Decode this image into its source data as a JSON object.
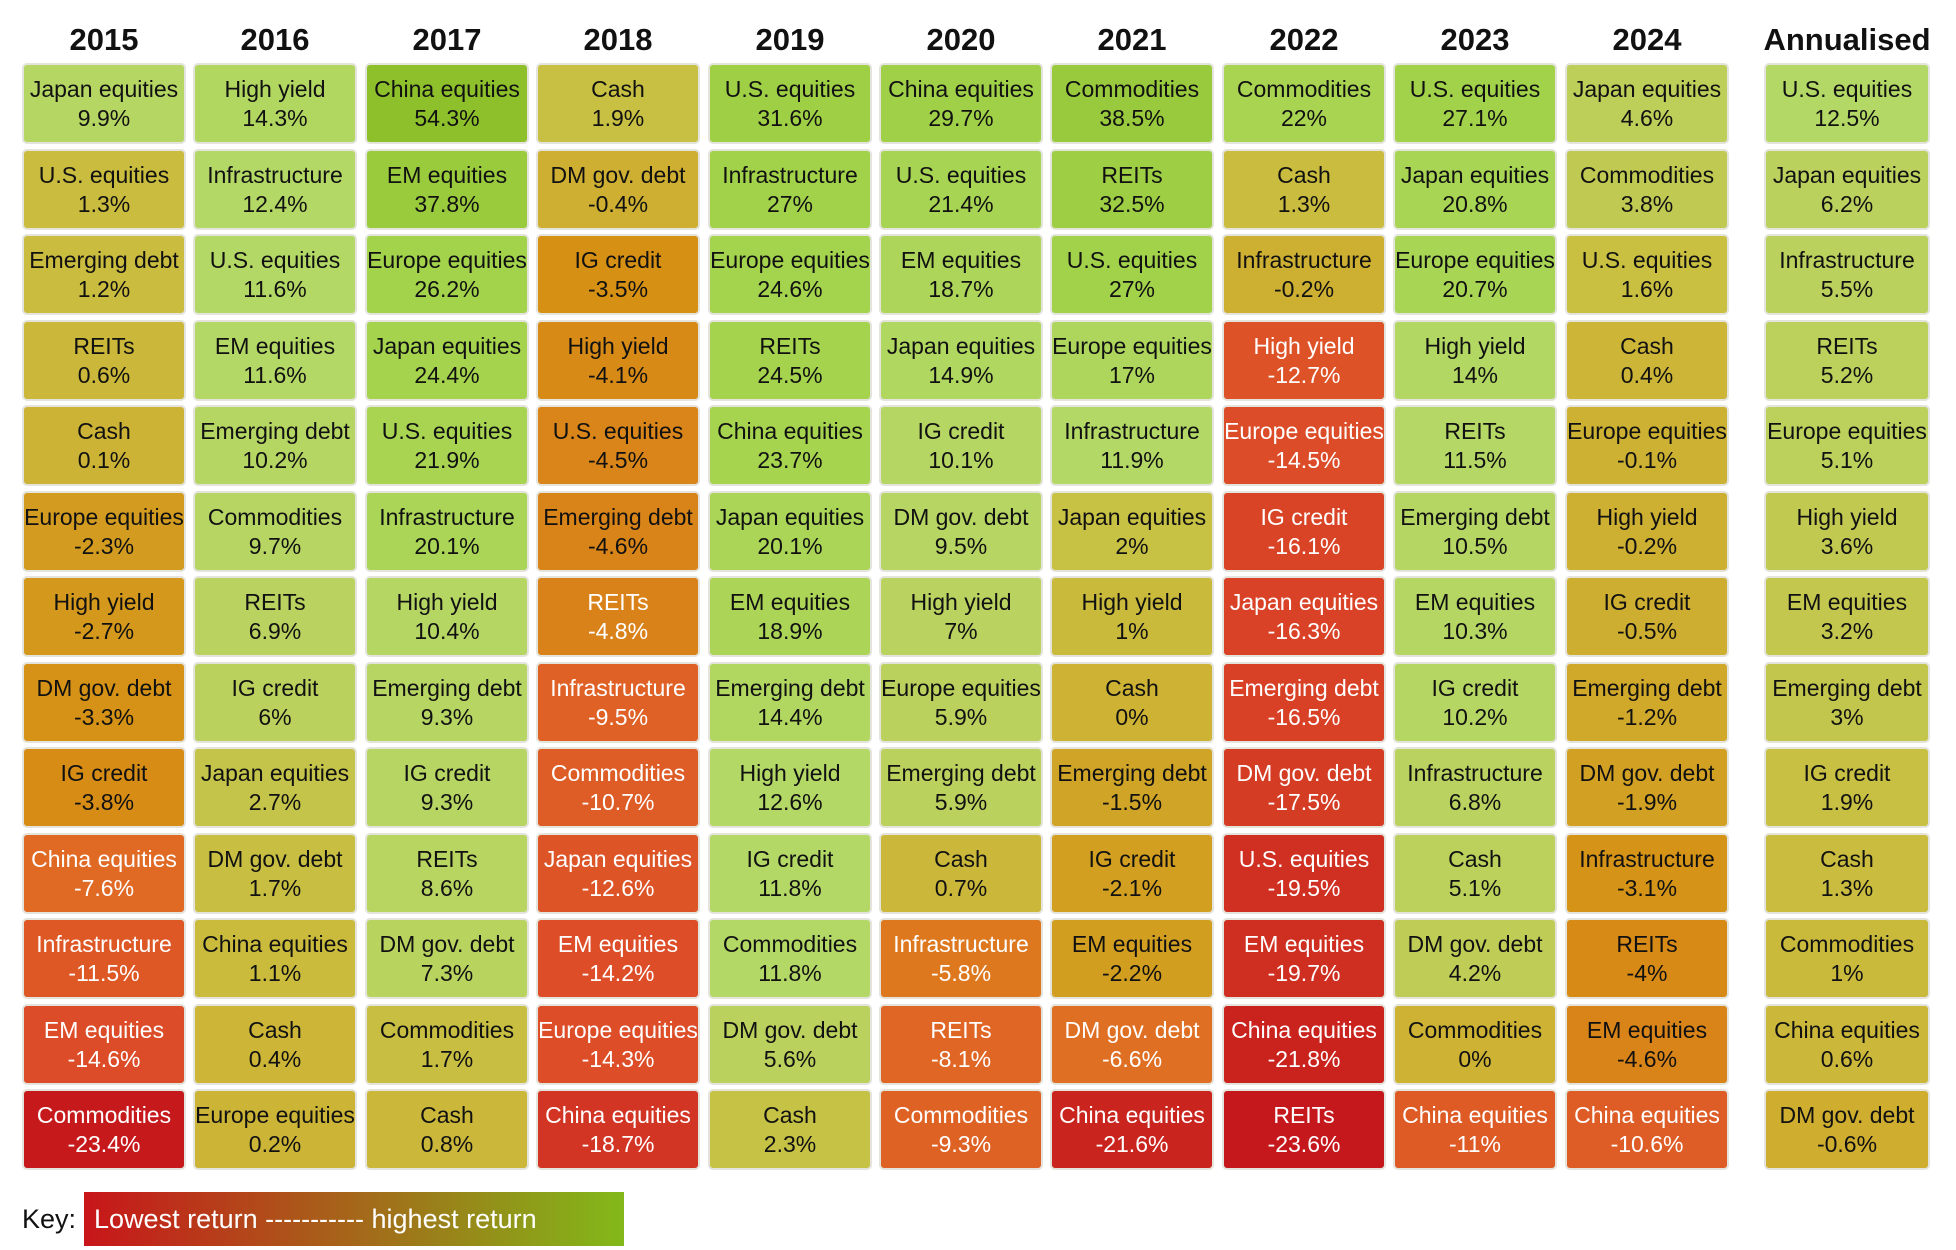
{
  "chart_data": {
    "type": "table",
    "title": "",
    "years": [
      "2015",
      "2016",
      "2017",
      "2018",
      "2019",
      "2020",
      "2021",
      "2022",
      "2023",
      "2024",
      "Annualised"
    ],
    "columns": [
      {
        "year": "2015",
        "cells": [
          {
            "asset": "Japan equities",
            "value": 9.9,
            "label": "9.9%"
          },
          {
            "asset": "U.S. equities",
            "value": 1.3,
            "label": "1.3%"
          },
          {
            "asset": "Emerging debt",
            "value": 1.2,
            "label": "1.2%"
          },
          {
            "asset": "REITs",
            "value": 0.6,
            "label": "0.6%"
          },
          {
            "asset": "Cash",
            "value": 0.1,
            "label": "0.1%"
          },
          {
            "asset": "Europe equities",
            "value": -2.3,
            "label": "-2.3%"
          },
          {
            "asset": "High yield",
            "value": -2.7,
            "label": "-2.7%"
          },
          {
            "asset": "DM gov. debt",
            "value": -3.3,
            "label": "-3.3%"
          },
          {
            "asset": "IG credit",
            "value": -3.8,
            "label": "-3.8%"
          },
          {
            "asset": "China equities",
            "value": -7.6,
            "label": "-7.6%"
          },
          {
            "asset": "Infrastructure",
            "value": -11.5,
            "label": "-11.5%"
          },
          {
            "asset": "EM equities",
            "value": -14.6,
            "label": "-14.6%"
          },
          {
            "asset": "Commodities",
            "value": -23.4,
            "label": "-23.4%"
          }
        ]
      },
      {
        "year": "2016",
        "cells": [
          {
            "asset": "High yield",
            "value": 14.3,
            "label": "14.3%"
          },
          {
            "asset": "Infrastructure",
            "value": 12.4,
            "label": "12.4%"
          },
          {
            "asset": "U.S. equities",
            "value": 11.6,
            "label": "11.6%"
          },
          {
            "asset": "EM equities",
            "value": 11.6,
            "label": "11.6%"
          },
          {
            "asset": "Emerging debt",
            "value": 10.2,
            "label": "10.2%"
          },
          {
            "asset": "Commodities",
            "value": 9.7,
            "label": "9.7%"
          },
          {
            "asset": "REITs",
            "value": 6.9,
            "label": "6.9%"
          },
          {
            "asset": "IG credit",
            "value": 6,
            "label": "6%"
          },
          {
            "asset": "Japan equities",
            "value": 2.7,
            "label": "2.7%"
          },
          {
            "asset": "DM gov. debt",
            "value": 1.7,
            "label": "1.7%"
          },
          {
            "asset": "China equities",
            "value": 1.1,
            "label": "1.1%"
          },
          {
            "asset": "Cash",
            "value": 0.4,
            "label": "0.4%"
          },
          {
            "asset": "Europe equities",
            "value": 0.2,
            "label": "0.2%"
          }
        ]
      },
      {
        "year": "2017",
        "cells": [
          {
            "asset": "China equities",
            "value": 54.3,
            "label": "54.3%"
          },
          {
            "asset": "EM equities",
            "value": 37.8,
            "label": "37.8%"
          },
          {
            "asset": "Europe equities",
            "value": 26.2,
            "label": "26.2%"
          },
          {
            "asset": "Japan equities",
            "value": 24.4,
            "label": "24.4%"
          },
          {
            "asset": "U.S. equities",
            "value": 21.9,
            "label": "21.9%"
          },
          {
            "asset": "Infrastructure",
            "value": 20.1,
            "label": "20.1%"
          },
          {
            "asset": "High yield",
            "value": 10.4,
            "label": "10.4%"
          },
          {
            "asset": "Emerging debt",
            "value": 9.3,
            "label": "9.3%"
          },
          {
            "asset": "IG credit",
            "value": 9.3,
            "label": "9.3%"
          },
          {
            "asset": "REITs",
            "value": 8.6,
            "label": "8.6%"
          },
          {
            "asset": "DM gov. debt",
            "value": 7.3,
            "label": "7.3%"
          },
          {
            "asset": "Commodities",
            "value": 1.7,
            "label": "1.7%"
          },
          {
            "asset": "Cash",
            "value": 0.8,
            "label": "0.8%"
          }
        ]
      },
      {
        "year": "2018",
        "cells": [
          {
            "asset": "Cash",
            "value": 1.9,
            "label": "1.9%"
          },
          {
            "asset": "DM gov. debt",
            "value": -0.4,
            "label": "-0.4%"
          },
          {
            "asset": "IG credit",
            "value": -3.5,
            "label": "-3.5%"
          },
          {
            "asset": "High yield",
            "value": -4.1,
            "label": "-4.1%"
          },
          {
            "asset": "U.S. equities",
            "value": -4.5,
            "label": "-4.5%"
          },
          {
            "asset": "Emerging debt",
            "value": -4.6,
            "label": "-4.6%"
          },
          {
            "asset": "REITs",
            "value": -4.8,
            "label": "-4.8%"
          },
          {
            "asset": "Infrastructure",
            "value": -9.5,
            "label": "-9.5%"
          },
          {
            "asset": "Commodities",
            "value": -10.7,
            "label": "-10.7%"
          },
          {
            "asset": "Japan equities",
            "value": -12.6,
            "label": "-12.6%"
          },
          {
            "asset": "EM equities",
            "value": -14.2,
            "label": "-14.2%"
          },
          {
            "asset": "Europe equities",
            "value": -14.3,
            "label": "-14.3%"
          },
          {
            "asset": "China equities",
            "value": -18.7,
            "label": "-18.7%"
          }
        ]
      },
      {
        "year": "2019",
        "cells": [
          {
            "asset": "U.S. equities",
            "value": 31.6,
            "label": "31.6%"
          },
          {
            "asset": "Infrastructure",
            "value": 27,
            "label": "27%"
          },
          {
            "asset": "Europe equities",
            "value": 24.6,
            "label": "24.6%"
          },
          {
            "asset": "REITs",
            "value": 24.5,
            "label": "24.5%"
          },
          {
            "asset": "China equities",
            "value": 23.7,
            "label": "23.7%"
          },
          {
            "asset": "Japan equities",
            "value": 20.1,
            "label": "20.1%"
          },
          {
            "asset": "EM equities",
            "value": 18.9,
            "label": "18.9%"
          },
          {
            "asset": "Emerging debt",
            "value": 14.4,
            "label": "14.4%"
          },
          {
            "asset": "High yield",
            "value": 12.6,
            "label": "12.6%"
          },
          {
            "asset": "IG credit",
            "value": 11.8,
            "label": "11.8%"
          },
          {
            "asset": "Commodities",
            "value": 11.8,
            "label": "11.8%"
          },
          {
            "asset": "DM gov. debt",
            "value": 5.6,
            "label": "5.6%"
          },
          {
            "asset": "Cash",
            "value": 2.3,
            "label": "2.3%"
          }
        ]
      },
      {
        "year": "2020",
        "cells": [
          {
            "asset": "China equities",
            "value": 29.7,
            "label": "29.7%"
          },
          {
            "asset": "U.S. equities",
            "value": 21.4,
            "label": "21.4%"
          },
          {
            "asset": "EM equities",
            "value": 18.7,
            "label": "18.7%"
          },
          {
            "asset": "Japan equities",
            "value": 14.9,
            "label": "14.9%"
          },
          {
            "asset": "IG credit",
            "value": 10.1,
            "label": "10.1%"
          },
          {
            "asset": "DM gov. debt",
            "value": 9.5,
            "label": "9.5%"
          },
          {
            "asset": "High yield",
            "value": 7,
            "label": "7%"
          },
          {
            "asset": "Europe equities",
            "value": 5.9,
            "label": "5.9%"
          },
          {
            "asset": "Emerging debt",
            "value": 5.9,
            "label": "5.9%"
          },
          {
            "asset": "Cash",
            "value": 0.7,
            "label": "0.7%"
          },
          {
            "asset": "Infrastructure",
            "value": -5.8,
            "label": "-5.8%"
          },
          {
            "asset": "REITs",
            "value": -8.1,
            "label": "-8.1%"
          },
          {
            "asset": "Commodities",
            "value": -9.3,
            "label": "-9.3%"
          }
        ]
      },
      {
        "year": "2021",
        "cells": [
          {
            "asset": "Commodities",
            "value": 38.5,
            "label": "38.5%"
          },
          {
            "asset": "REITs",
            "value": 32.5,
            "label": "32.5%"
          },
          {
            "asset": "U.S. equities",
            "value": 27,
            "label": "27%"
          },
          {
            "asset": "Europe equities",
            "value": 17,
            "label": "17%"
          },
          {
            "asset": "Infrastructure",
            "value": 11.9,
            "label": "11.9%"
          },
          {
            "asset": "Japan equities",
            "value": 2,
            "label": "2%"
          },
          {
            "asset": "High yield",
            "value": 1,
            "label": "1%"
          },
          {
            "asset": "Cash",
            "value": 0,
            "label": "0%"
          },
          {
            "asset": "Emerging debt",
            "value": -1.5,
            "label": "-1.5%"
          },
          {
            "asset": "IG credit",
            "value": -2.1,
            "label": "-2.1%"
          },
          {
            "asset": "EM equities",
            "value": -2.2,
            "label": "-2.2%"
          },
          {
            "asset": "DM gov. debt",
            "value": -6.6,
            "label": "-6.6%"
          },
          {
            "asset": "China equities",
            "value": -21.6,
            "label": "-21.6%"
          }
        ]
      },
      {
        "year": "2022",
        "cells": [
          {
            "asset": "Commodities",
            "value": 22,
            "label": "22%"
          },
          {
            "asset": "Cash",
            "value": 1.3,
            "label": "1.3%"
          },
          {
            "asset": "Infrastructure",
            "value": -0.2,
            "label": "-0.2%"
          },
          {
            "asset": "High yield",
            "value": -12.7,
            "label": "-12.7%"
          },
          {
            "asset": "Europe equities",
            "value": -14.5,
            "label": "-14.5%"
          },
          {
            "asset": "IG credit",
            "value": -16.1,
            "label": "-16.1%"
          },
          {
            "asset": "Japan equities",
            "value": -16.3,
            "label": "-16.3%"
          },
          {
            "asset": "Emerging debt",
            "value": -16.5,
            "label": "-16.5%"
          },
          {
            "asset": "DM gov. debt",
            "value": -17.5,
            "label": "-17.5%"
          },
          {
            "asset": "U.S. equities",
            "value": -19.5,
            "label": "-19.5%"
          },
          {
            "asset": "EM equities",
            "value": -19.7,
            "label": "-19.7%"
          },
          {
            "asset": "China equities",
            "value": -21.8,
            "label": "-21.8%"
          },
          {
            "asset": "REITs",
            "value": -23.6,
            "label": "-23.6%"
          }
        ]
      },
      {
        "year": "2023",
        "cells": [
          {
            "asset": "U.S. equities",
            "value": 27.1,
            "label": "27.1%"
          },
          {
            "asset": "Japan equities",
            "value": 20.8,
            "label": "20.8%"
          },
          {
            "asset": "Europe equities",
            "value": 20.7,
            "label": "20.7%"
          },
          {
            "asset": "High yield",
            "value": 14,
            "label": "14%"
          },
          {
            "asset": "REITs",
            "value": 11.5,
            "label": "11.5%"
          },
          {
            "asset": "Emerging debt",
            "value": 10.5,
            "label": "10.5%"
          },
          {
            "asset": "EM equities",
            "value": 10.3,
            "label": "10.3%"
          },
          {
            "asset": "IG credit",
            "value": 10.2,
            "label": "10.2%"
          },
          {
            "asset": "Infrastructure",
            "value": 6.8,
            "label": "6.8%"
          },
          {
            "asset": "Cash",
            "value": 5.1,
            "label": "5.1%"
          },
          {
            "asset": "DM gov. debt",
            "value": 4.2,
            "label": "4.2%"
          },
          {
            "asset": "Commodities",
            "value": 0,
            "label": "0%"
          },
          {
            "asset": "China equities",
            "value": -11,
            "label": "-11%"
          }
        ]
      },
      {
        "year": "2024",
        "cells": [
          {
            "asset": "Japan equities",
            "value": 4.6,
            "label": "4.6%"
          },
          {
            "asset": "Commodities",
            "value": 3.8,
            "label": "3.8%"
          },
          {
            "asset": "U.S. equities",
            "value": 1.6,
            "label": "1.6%"
          },
          {
            "asset": "Cash",
            "value": 0.4,
            "label": "0.4%"
          },
          {
            "asset": "Europe equities",
            "value": -0.1,
            "label": "-0.1%"
          },
          {
            "asset": "High yield",
            "value": -0.2,
            "label": "-0.2%"
          },
          {
            "asset": "IG credit",
            "value": -0.5,
            "label": "-0.5%"
          },
          {
            "asset": "Emerging debt",
            "value": -1.2,
            "label": "-1.2%"
          },
          {
            "asset": "DM gov. debt",
            "value": -1.9,
            "label": "-1.9%"
          },
          {
            "asset": "Infrastructure",
            "value": -3.1,
            "label": "-3.1%"
          },
          {
            "asset": "REITs",
            "value": -4,
            "label": "-4%"
          },
          {
            "asset": "EM equities",
            "value": -4.6,
            "label": "-4.6%"
          },
          {
            "asset": "China equities",
            "value": -10.6,
            "label": "-10.6%"
          }
        ]
      },
      {
        "year": "Annualised",
        "cells": [
          {
            "asset": "U.S. equities",
            "value": 12.5,
            "label": "12.5%"
          },
          {
            "asset": "Japan equities",
            "value": 6.2,
            "label": "6.2%"
          },
          {
            "asset": "Infrastructure",
            "value": 5.5,
            "label": "5.5%"
          },
          {
            "asset": "REITs",
            "value": 5.2,
            "label": "5.2%"
          },
          {
            "asset": "Europe equities",
            "value": 5.1,
            "label": "5.1%"
          },
          {
            "asset": "High yield",
            "value": 3.6,
            "label": "3.6%"
          },
          {
            "asset": "EM equities",
            "value": 3.2,
            "label": "3.2%"
          },
          {
            "asset": "Emerging debt",
            "value": 3,
            "label": "3%"
          },
          {
            "asset": "IG credit",
            "value": 1.9,
            "label": "1.9%"
          },
          {
            "asset": "Cash",
            "value": 1.3,
            "label": "1.3%"
          },
          {
            "asset": "Commodities",
            "value": 1,
            "label": "1%"
          },
          {
            "asset": "China equities",
            "value": 0.6,
            "label": "0.6%"
          },
          {
            "asset": "DM gov. debt",
            "value": -0.6,
            "label": "-0.6%"
          }
        ]
      }
    ],
    "legend": {
      "key_label": "Key:",
      "text": "Lowest return ----------- highest return",
      "low_color": "#c8151a",
      "high_color": "#82b919"
    },
    "color_scale": {
      "stops": [
        {
          "value": -24,
          "color": "#c4161b"
        },
        {
          "value": -15,
          "color": "#dc4a28"
        },
        {
          "value": -7,
          "color": "#e06b24"
        },
        {
          "value": -3.5,
          "color": "#d69014"
        },
        {
          "value": -1,
          "color": "#cfaa2c"
        },
        {
          "value": 1.5,
          "color": "#c9be40"
        },
        {
          "value": 5,
          "color": "#bcd05c"
        },
        {
          "value": 12,
          "color": "#b4d866"
        },
        {
          "value": 25,
          "color": "#a4d34c"
        },
        {
          "value": 55,
          "color": "#8cc02a"
        }
      ],
      "light_text_below": -4.7,
      "text_dark": "#111111",
      "text_light": "#ffffff"
    }
  }
}
